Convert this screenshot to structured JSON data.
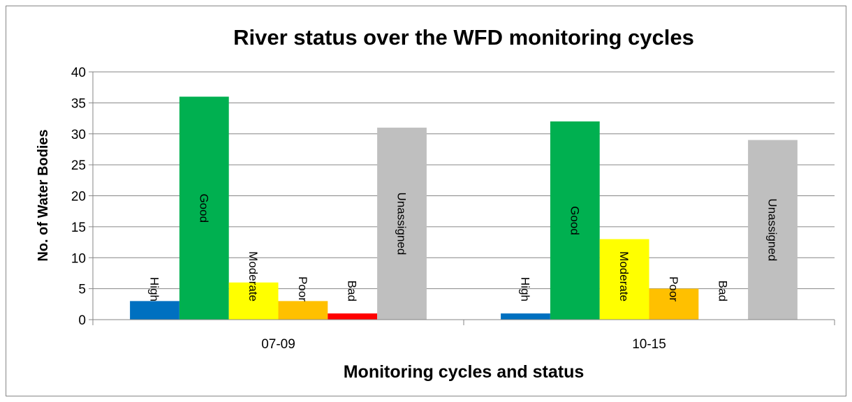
{
  "chart_data": {
    "type": "bar",
    "title": "River status over the WFD monitoring cycles",
    "x_label": "Monitoring cycles and status",
    "y_label": "No. of Water Bodies",
    "categories": [
      "07-09",
      "10-15"
    ],
    "series": [
      {
        "name": "High",
        "color": "#0070c0",
        "values": [
          3,
          1
        ]
      },
      {
        "name": "Good",
        "color": "#00b050",
        "values": [
          36,
          32
        ]
      },
      {
        "name": "Moderate",
        "color": "#ffff00",
        "values": [
          6,
          13
        ]
      },
      {
        "name": "Poor",
        "color": "#ffc000",
        "values": [
          3,
          5
        ]
      },
      {
        "name": "Bad",
        "color": "#ff0000",
        "values": [
          1,
          0
        ]
      },
      {
        "name": "Unassigned",
        "color": "#bfbfbf",
        "values": [
          31,
          29
        ]
      }
    ],
    "ylim": [
      0,
      40
    ],
    "yticks": [
      0,
      5,
      10,
      15,
      20,
      25,
      30,
      35,
      40
    ],
    "grid": true
  }
}
